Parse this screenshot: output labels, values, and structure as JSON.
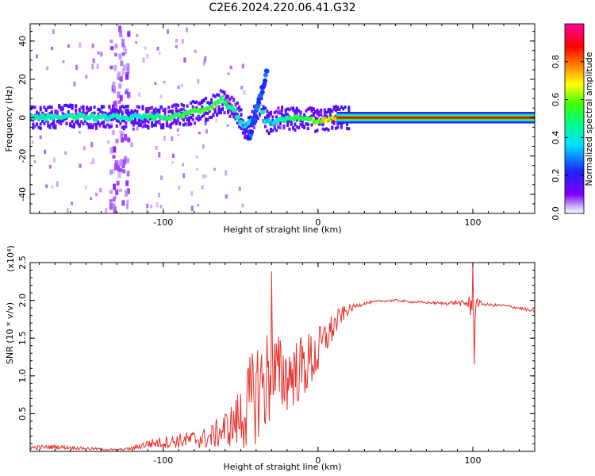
{
  "title": "C2E6.2024.220.06.41.G32",
  "chart_data": [
    {
      "type": "heatmap",
      "xlabel": "Height of straight line (km)",
      "ylabel": "Frequency (Hz)",
      "xlim": [
        -186,
        140
      ],
      "ylim": [
        -50,
        49
      ],
      "xticks": [
        -100,
        0,
        100
      ],
      "yticks": [
        -40,
        -20,
        0,
        20,
        40
      ],
      "colorbar": {
        "label": "Normalized spectral amplitude",
        "ticks": [
          0.0,
          0.2,
          0.4,
          0.6,
          0.8
        ],
        "range": [
          0,
          1
        ],
        "colormap": "rainbow (white → violet → blue → cyan → green → yellow → red → magenta)"
      },
      "ridge": {
        "description": "Dominant Doppler ridge near 0 Hz",
        "points_x": [
          -186,
          -160,
          -140,
          -120,
          -100,
          -85,
          -70,
          -62,
          -55,
          -48,
          -43,
          -38,
          -34,
          -30,
          -25,
          -20,
          -10,
          0,
          10,
          20,
          60,
          100,
          140
        ],
        "points_freq": [
          0,
          1,
          0,
          0,
          0,
          2,
          5,
          9,
          5,
          -5,
          -2,
          8,
          -2,
          -3,
          0,
          -1,
          0,
          -2,
          0,
          0,
          0,
          0,
          0
        ],
        "points_amp": [
          0.45,
          0.5,
          0.45,
          0.45,
          0.55,
          0.6,
          0.65,
          0.6,
          0.5,
          0.4,
          0.5,
          0.55,
          0.45,
          0.4,
          0.45,
          0.5,
          0.6,
          0.7,
          0.85,
          0.9,
          0.9,
          0.9,
          0.9
        ]
      },
      "grid": false
    },
    {
      "type": "line",
      "xlabel": "Height of straight line (km)",
      "ylabel": "SNR (10 * v/v)",
      "yscale_label": "(x10⁴)",
      "xlim": [
        -186,
        140
      ],
      "ylim": [
        0,
        2.5
      ],
      "xticks": [
        -100,
        0,
        100
      ],
      "yticks": [
        0.5,
        1.0,
        1.5,
        2.0,
        2.5
      ],
      "series": [
        {
          "color": "#e8302c",
          "x": [
            -186,
            -170,
            -150,
            -130,
            -120,
            -110,
            -100,
            -90,
            -80,
            -70,
            -60,
            -55,
            -50,
            -45,
            -40,
            -35,
            -30,
            -25,
            -20,
            -15,
            -10,
            -5,
            0,
            5,
            10,
            15,
            20,
            25,
            30,
            40,
            50,
            60,
            70,
            80,
            90,
            95,
            98,
            100,
            102,
            105,
            110,
            120,
            130,
            140
          ],
          "y": [
            0.05,
            0.06,
            0.04,
            0.02,
            0.04,
            0.1,
            0.12,
            0.14,
            0.16,
            0.18,
            0.3,
            0.35,
            0.45,
            0.6,
            0.8,
            0.9,
            1.0,
            1.0,
            1.0,
            1.05,
            1.1,
            1.2,
            1.3,
            1.5,
            1.65,
            1.8,
            1.88,
            1.93,
            1.96,
            1.99,
            2.0,
            1.98,
            1.97,
            1.96,
            1.97,
            1.95,
            2.0,
            1.6,
            1.98,
            1.96,
            1.94,
            1.93,
            1.9,
            1.85
          ],
          "noise": [
            0.03,
            0.03,
            0.02,
            0.01,
            0.02,
            0.06,
            0.08,
            0.1,
            0.12,
            0.15,
            0.25,
            0.3,
            0.45,
            0.6,
            0.7,
            0.75,
            0.65,
            0.55,
            0.5,
            0.45,
            0.45,
            0.4,
            0.35,
            0.25,
            0.2,
            0.12,
            0.06,
            0.03,
            0.02,
            0.015,
            0.015,
            0.015,
            0.015,
            0.02,
            0.03,
            0.05,
            0.15,
            0.3,
            0.1,
            0.03,
            0.02,
            0.02,
            0.02,
            0.02
          ]
        }
      ],
      "peaks": [
        {
          "x": -30,
          "y": 2.38
        },
        {
          "x": 100,
          "y": 2.5
        },
        {
          "x": 101,
          "y": 1.15
        }
      ],
      "grid": false
    }
  ]
}
